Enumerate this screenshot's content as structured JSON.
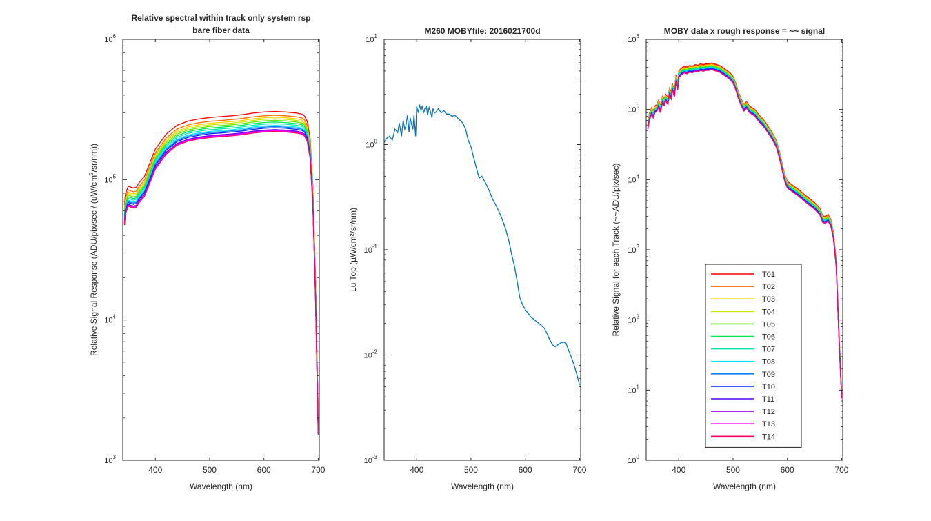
{
  "figure": {
    "background": "#ffffff",
    "axis_color": "#262626"
  },
  "chart_data": [
    {
      "type": "line",
      "title": [
        "Relative spectral within track only system rsp",
        "bare fiber data"
      ],
      "xlabel": "Wavelength (nm)",
      "ylabel_parts": [
        "Relative Signal Response (ADU/pix/sec / (uW/cm",
        "2",
        "/sr/nm))"
      ],
      "xlim": [
        340,
        702
      ],
      "ylim": [
        1000,
        1000000
      ],
      "yscale": "log",
      "xticks": [
        400,
        500,
        600,
        700
      ],
      "yticks": [
        {
          "base": "10",
          "exp": "3",
          "value": 1000
        },
        {
          "base": "10",
          "exp": "4",
          "value": 10000
        },
        {
          "base": "10",
          "exp": "5",
          "value": 100000
        },
        {
          "base": "10",
          "exp": "6",
          "value": 1000000
        }
      ],
      "x": [
        343,
        345,
        350,
        355,
        360,
        365,
        370,
        380,
        390,
        400,
        420,
        440,
        460,
        480,
        500,
        520,
        540,
        560,
        580,
        600,
        620,
        640,
        660,
        670,
        675,
        680,
        685,
        690,
        695,
        700
      ],
      "base_values": [
        50000,
        60000,
        68000,
        67000,
        66000,
        67000,
        72000,
        80000,
        100000,
        125000,
        160000,
        185000,
        198000,
        205000,
        210000,
        213000,
        216000,
        220000,
        226000,
        230000,
        232000,
        230000,
        226000,
        222000,
        215000,
        195000,
        150000,
        70000,
        15000,
        1600
      ],
      "series": [
        {
          "name": "T01",
          "color": "#ff0000",
          "scale": 1.32
        },
        {
          "name": "T02",
          "color": "#ff6a00",
          "scale": 1.24
        },
        {
          "name": "T03",
          "color": "#ffd000",
          "scale": 1.2
        },
        {
          "name": "T04",
          "color": "#c8e600",
          "scale": 1.17
        },
        {
          "name": "T05",
          "color": "#66e600",
          "scale": 1.14
        },
        {
          "name": "T06",
          "color": "#00e650",
          "scale": 1.11
        },
        {
          "name": "T07",
          "color": "#00e6b0",
          "scale": 1.08
        },
        {
          "name": "T08",
          "color": "#00e6ff",
          "scale": 1.05
        },
        {
          "name": "T09",
          "color": "#0080ff",
          "scale": 1.03
        },
        {
          "name": "T10",
          "color": "#0020ff",
          "scale": 1.01
        },
        {
          "name": "T11",
          "color": "#5500ff",
          "scale": 0.98
        },
        {
          "name": "T12",
          "color": "#aa00ff",
          "scale": 0.97
        },
        {
          "name": "T13",
          "color": "#ff00ff",
          "scale": 0.96
        },
        {
          "name": "T14",
          "color": "#ff0066",
          "scale": 0.95
        }
      ]
    },
    {
      "type": "line",
      "title": [
        "M260 MOBYfile: 2016021700d"
      ],
      "xlabel": "Wavelength (nm)",
      "ylabel": "Lu Top  (µW/cm²/sr/nm)",
      "xlim": [
        340,
        702
      ],
      "ylim": [
        0.001,
        10
      ],
      "yscale": "log",
      "xticks": [
        400,
        500,
        600,
        700
      ],
      "yticks": [
        {
          "base": "10",
          "exp": "-3",
          "value": 0.001
        },
        {
          "base": "10",
          "exp": "-2",
          "value": 0.01
        },
        {
          "base": "10",
          "exp": "-1",
          "value": 0.1
        },
        {
          "base": "10",
          "exp": "0",
          "value": 1
        },
        {
          "base": "10",
          "exp": "1",
          "value": 10
        }
      ],
      "series": [
        {
          "name": "",
          "color": "#0072bd",
          "x": [
            340,
            345,
            350,
            355,
            360,
            365,
            368,
            372,
            375,
            378,
            380,
            383,
            386,
            388,
            390,
            393,
            395,
            398,
            400,
            403,
            405,
            408,
            410,
            413,
            415,
            418,
            420,
            423,
            425,
            428,
            430,
            433,
            436,
            440,
            445,
            450,
            455,
            460,
            465,
            470,
            475,
            480,
            485,
            490,
            495,
            500,
            505,
            510,
            515,
            520,
            525,
            530,
            535,
            540,
            545,
            550,
            555,
            560,
            565,
            570,
            575,
            580,
            585,
            590,
            595,
            600,
            605,
            610,
            615,
            620,
            625,
            630,
            635,
            640,
            645,
            650,
            655,
            660,
            665,
            670,
            675,
            680,
            685,
            690,
            695,
            700
          ],
          "values": [
            1.05,
            1.15,
            1.2,
            1.1,
            1.4,
            1.3,
            1.6,
            1.2,
            1.7,
            1.4,
            1.5,
            1.9,
            1.3,
            1.8,
            1.6,
            1.4,
            1.9,
            1.2,
            2.3,
            2.0,
            2.4,
            2.1,
            2.3,
            2.0,
            2.2,
            2.3,
            1.9,
            2.25,
            2.1,
            1.8,
            2.2,
            2.0,
            2.05,
            2.2,
            2.0,
            2.1,
            1.95,
            1.95,
            1.85,
            1.9,
            1.8,
            1.7,
            1.6,
            1.4,
            1.1,
            0.95,
            0.75,
            0.6,
            0.48,
            0.5,
            0.45,
            0.4,
            0.35,
            0.3,
            0.27,
            0.24,
            0.21,
            0.18,
            0.15,
            0.12,
            0.09,
            0.07,
            0.05,
            0.035,
            0.03,
            0.027,
            0.025,
            0.023,
            0.022,
            0.021,
            0.02,
            0.019,
            0.018,
            0.016,
            0.014,
            0.0125,
            0.012,
            0.0125,
            0.013,
            0.0133,
            0.013,
            0.011,
            0.0095,
            0.008,
            0.0065,
            0.0052
          ]
        }
      ]
    },
    {
      "type": "line",
      "title": [
        "MOBY data x rough response = ~~ signal"
      ],
      "xlabel": "Wavelength (nm)",
      "ylabel": "Relative Signal for each Track (~~ADU/pix/sec)",
      "xlim": [
        340,
        702
      ],
      "ylim": [
        1,
        1000000
      ],
      "yscale": "log",
      "xticks": [
        400,
        500,
        600,
        700
      ],
      "yticks": [
        {
          "base": "10",
          "exp": "0",
          "value": 1
        },
        {
          "base": "10",
          "exp": "1",
          "value": 10
        },
        {
          "base": "10",
          "exp": "2",
          "value": 100
        },
        {
          "base": "10",
          "exp": "3",
          "value": 1000
        },
        {
          "base": "10",
          "exp": "4",
          "value": 10000
        },
        {
          "base": "10",
          "exp": "5",
          "value": 100000
        },
        {
          "base": "10",
          "exp": "6",
          "value": 1000000
        }
      ],
      "x": [
        343,
        346,
        350,
        353,
        356,
        360,
        363,
        366,
        370,
        373,
        376,
        380,
        383,
        386,
        388,
        390,
        392,
        395,
        398,
        400,
        405,
        410,
        415,
        420,
        425,
        430,
        435,
        440,
        445,
        450,
        455,
        460,
        465,
        470,
        475,
        480,
        485,
        490,
        495,
        500,
        505,
        510,
        515,
        520,
        525,
        530,
        535,
        540,
        545,
        550,
        555,
        560,
        565,
        570,
        575,
        580,
        585,
        590,
        595,
        600,
        605,
        610,
        620,
        630,
        640,
        650,
        660,
        665,
        670,
        675,
        680,
        685,
        690,
        695,
        700
      ],
      "base_values": [
        55000,
        75000,
        90000,
        80000,
        95000,
        100000,
        115000,
        95000,
        130000,
        120000,
        140000,
        125000,
        170000,
        150000,
        200000,
        180000,
        160000,
        260000,
        200000,
        300000,
        330000,
        350000,
        340000,
        360000,
        350000,
        370000,
        360000,
        380000,
        370000,
        380000,
        380000,
        390000,
        380000,
        370000,
        360000,
        340000,
        320000,
        300000,
        280000,
        250000,
        200000,
        150000,
        120000,
        100000,
        110000,
        95000,
        90000,
        85000,
        75000,
        68000,
        62000,
        55000,
        48000,
        42000,
        36000,
        30000,
        22000,
        15000,
        10000,
        8000,
        7500,
        7000,
        6200,
        5300,
        4600,
        4000,
        3300,
        2600,
        2500,
        2700,
        2300,
        1500,
        600,
        60,
        8
      ],
      "series": [
        {
          "name": "T01",
          "color": "#ff0000",
          "scale": 1.18
        },
        {
          "name": "T02",
          "color": "#ff6a00",
          "scale": 1.15
        },
        {
          "name": "T03",
          "color": "#ffd000",
          "scale": 1.12
        },
        {
          "name": "T04",
          "color": "#c8e600",
          "scale": 1.1
        },
        {
          "name": "T05",
          "color": "#66e600",
          "scale": 1.08
        },
        {
          "name": "T06",
          "color": "#00e650",
          "scale": 1.06
        },
        {
          "name": "T07",
          "color": "#00e6b0",
          "scale": 1.04
        },
        {
          "name": "T08",
          "color": "#00e6ff",
          "scale": 1.02
        },
        {
          "name": "T09",
          "color": "#0080ff",
          "scale": 1.0
        },
        {
          "name": "T10",
          "color": "#0020ff",
          "scale": 0.99
        },
        {
          "name": "T11",
          "color": "#5500ff",
          "scale": 0.97
        },
        {
          "name": "T12",
          "color": "#aa00ff",
          "scale": 0.96
        },
        {
          "name": "T13",
          "color": "#ff00ff",
          "scale": 0.95
        },
        {
          "name": "T14",
          "color": "#ff0066",
          "scale": 0.95
        }
      ],
      "legend": {
        "placement": "lower-center",
        "entries": [
          "T01",
          "T02",
          "T03",
          "T04",
          "T05",
          "T06",
          "T07",
          "T08",
          "T09",
          "T10",
          "T11",
          "T12",
          "T13",
          "T14"
        ]
      }
    }
  ]
}
